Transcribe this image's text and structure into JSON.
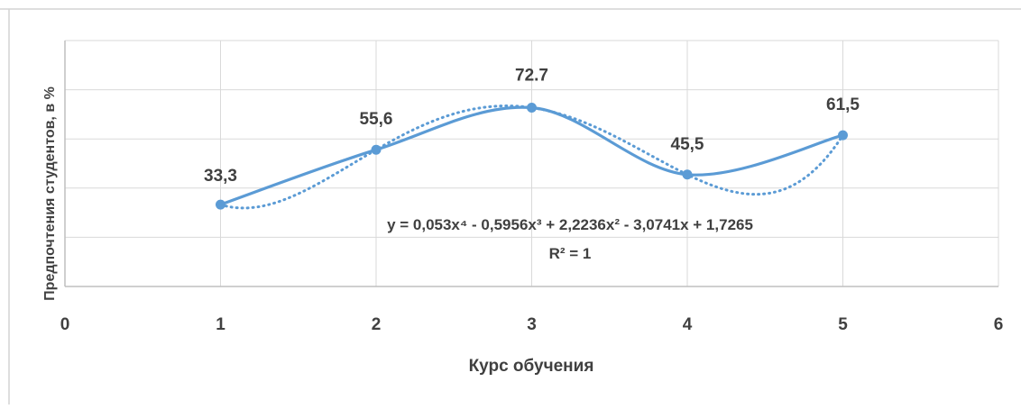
{
  "chart_data": {
    "type": "scatter",
    "title": "",
    "xlabel": "Курс обучения",
    "ylabel": "Предпочтения студентов, в %",
    "xlim": [
      0,
      6
    ],
    "ylim": [
      0,
      100
    ],
    "x_ticks": [
      0,
      1,
      2,
      3,
      4,
      5,
      6
    ],
    "x_tick_labels": [
      "0",
      "1",
      "2",
      "3",
      "4",
      "5",
      "6"
    ],
    "y_tick_labels_visible": false,
    "grid": {
      "x": true,
      "y": true
    },
    "legend": "none",
    "series": [
      {
        "x": [
          1,
          2,
          3,
          4,
          5
        ],
        "y": [
          33.3,
          55.6,
          72.7,
          45.5,
          61.5
        ],
        "data_labels": [
          "33,3",
          "55,6",
          "72.7",
          "45,5",
          "61,5"
        ],
        "line": "smooth",
        "color": "#5b9bd5"
      }
    ],
    "trendline": {
      "type": "polynomial",
      "order": 4,
      "style": "dotted",
      "color": "#5b9bd5",
      "equation_label": "y = 0,053x⁴ - 0,5956x³ + 2,2236x² - 3,0741x + 1,7265",
      "r2_label": "R² = 1"
    }
  },
  "colors": {
    "series": "#5b9bd5",
    "grid": "#d9d9d9",
    "axis": "#bfbfbf",
    "text": "#404040"
  }
}
